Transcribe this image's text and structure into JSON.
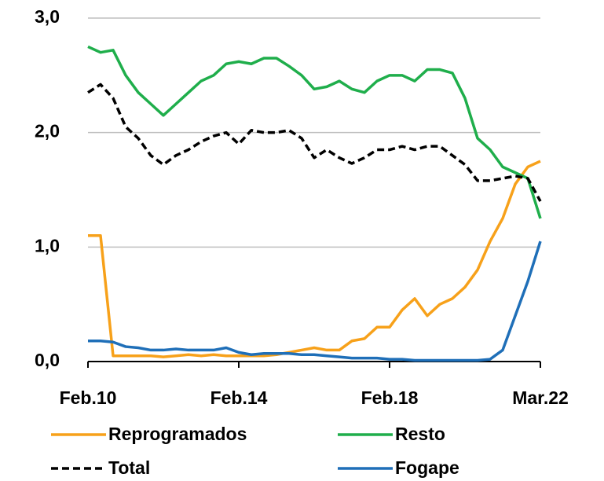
{
  "chart_data": {
    "type": "line",
    "categories": [
      "Feb.10",
      null,
      null,
      null,
      null,
      null,
      null,
      null,
      null,
      null,
      null,
      null,
      "Feb.14",
      null,
      null,
      null,
      null,
      null,
      null,
      null,
      null,
      null,
      null,
      null,
      "Feb.18",
      null,
      null,
      null,
      null,
      null,
      null,
      null,
      null,
      null,
      null,
      null,
      "Mar.22"
    ],
    "series": [
      {
        "name": "Reprogramados",
        "color": "#f7a11a",
        "values": [
          1.1,
          1.1,
          0.05,
          0.05,
          0.05,
          0.05,
          0.04,
          0.05,
          0.06,
          0.05,
          0.06,
          0.05,
          0.05,
          0.05,
          0.05,
          0.06,
          0.08,
          0.1,
          0.12,
          0.1,
          0.1,
          0.18,
          0.2,
          0.3,
          0.3,
          0.45,
          0.55,
          0.4,
          0.5,
          0.55,
          0.65,
          0.8,
          1.05,
          1.25,
          1.55,
          1.7,
          1.75
        ]
      },
      {
        "name": "Resto",
        "color": "#1fae4b",
        "values": [
          2.75,
          2.7,
          2.72,
          2.5,
          2.35,
          2.25,
          2.15,
          2.25,
          2.35,
          2.45,
          2.5,
          2.6,
          2.62,
          2.6,
          2.65,
          2.65,
          2.58,
          2.5,
          2.38,
          2.4,
          2.45,
          2.38,
          2.35,
          2.45,
          2.5,
          2.5,
          2.45,
          2.55,
          2.55,
          2.52,
          2.3,
          1.95,
          1.85,
          1.7,
          1.65,
          1.6,
          1.25
        ]
      },
      {
        "name": "Total",
        "color": "#000000",
        "dashed": true,
        "values": [
          2.35,
          2.42,
          2.3,
          2.05,
          1.95,
          1.8,
          1.72,
          1.8,
          1.85,
          1.92,
          1.97,
          2.0,
          1.9,
          2.02,
          2.0,
          2.0,
          2.02,
          1.95,
          1.78,
          1.85,
          1.78,
          1.73,
          1.78,
          1.85,
          1.85,
          1.88,
          1.85,
          1.88,
          1.88,
          1.8,
          1.72,
          1.58,
          1.58,
          1.6,
          1.62,
          1.6,
          1.4
        ]
      },
      {
        "name": "Fogape",
        "color": "#1f6fb8",
        "values": [
          0.18,
          0.18,
          0.17,
          0.13,
          0.12,
          0.1,
          0.1,
          0.11,
          0.1,
          0.1,
          0.1,
          0.12,
          0.08,
          0.06,
          0.07,
          0.07,
          0.07,
          0.06,
          0.06,
          0.05,
          0.04,
          0.03,
          0.03,
          0.03,
          0.02,
          0.02,
          0.01,
          0.01,
          0.01,
          0.01,
          0.01,
          0.01,
          0.02,
          0.1,
          0.4,
          0.7,
          1.05
        ]
      }
    ],
    "ylim": [
      0,
      3
    ],
    "yticks": [
      {
        "value": 0,
        "label": "0,0"
      },
      {
        "value": 1,
        "label": "1,0"
      },
      {
        "value": 2,
        "label": "2,0"
      },
      {
        "value": 3,
        "label": "3,0"
      }
    ],
    "grid": true
  }
}
